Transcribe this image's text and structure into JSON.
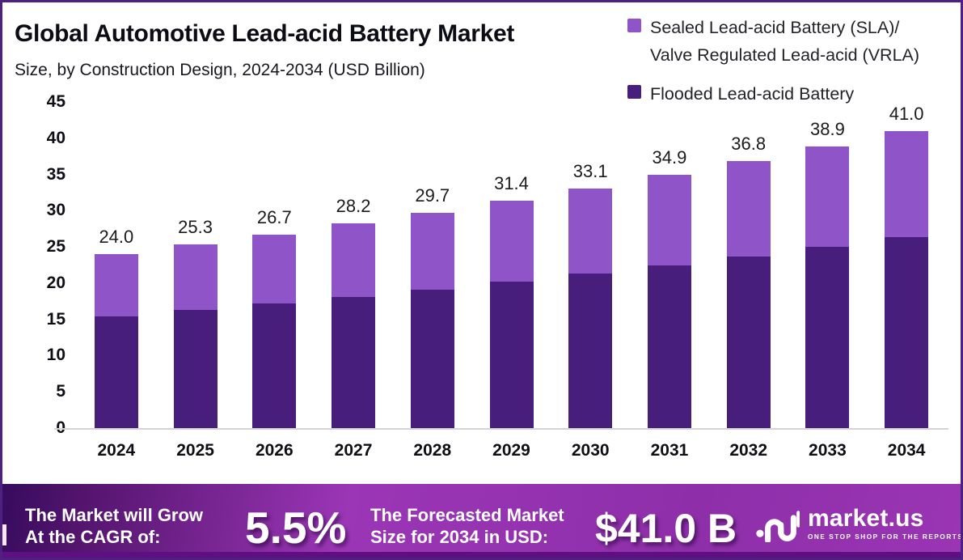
{
  "header": {
    "title": "Global Automotive Lead-acid Battery Market",
    "subtitle": "Size, by Construction Design, 2024-2034 (USD Billion)"
  },
  "legend": {
    "items": [
      {
        "lines": [
          "Sealed Lead-acid Battery (SLA)/",
          "Valve Regulated Lead-acid (VRLA)"
        ],
        "color": "#8f55c8"
      },
      {
        "lines": [
          "Flooded Lead-acid Battery",
          ""
        ],
        "color": "#471e7b"
      }
    ]
  },
  "chart_data": {
    "type": "bar",
    "stacked": true,
    "title": "Global Automotive Lead-acid Battery Market Size, by Construction Design, 2024-2034 (USD Billion)",
    "categories": [
      "2024",
      "2025",
      "2026",
      "2027",
      "2028",
      "2029",
      "2030",
      "2031",
      "2032",
      "2033",
      "2034"
    ],
    "series": [
      {
        "name": "Flooded Lead-acid Battery",
        "color": "#471e7b",
        "values": [
          15.4,
          16.3,
          17.2,
          18.1,
          19.1,
          20.2,
          21.3,
          22.4,
          23.7,
          25.0,
          26.4
        ]
      },
      {
        "name": "Sealed Lead-acid Battery (SLA)/Valve Regulated Lead-acid (VRLA)",
        "color": "#8f55c8",
        "values": [
          8.6,
          9.0,
          9.5,
          10.1,
          10.6,
          11.2,
          11.8,
          12.5,
          13.1,
          13.9,
          14.6
        ]
      }
    ],
    "totals": [
      24.0,
      25.3,
      26.7,
      28.2,
      29.7,
      31.4,
      33.1,
      34.9,
      36.8,
      38.9,
      41.0
    ],
    "total_labels": [
      "24.0",
      "25.3",
      "26.7",
      "28.2",
      "29.7",
      "31.4",
      "33.1",
      "34.9",
      "36.8",
      "38.9",
      "41.0"
    ],
    "xlabel": "",
    "ylabel": "",
    "ylim": [
      0,
      45
    ],
    "yticks": [
      0,
      5,
      10,
      15,
      20,
      25,
      30,
      35,
      40,
      45
    ],
    "grid": false,
    "legend_position": "top-right"
  },
  "banner": {
    "cagr_label_lines": [
      "The Market will Grow",
      "At the CAGR of:"
    ],
    "cagr_value": "5.5%",
    "forecast_label_lines": [
      "The Forecasted Market",
      "Size for 2034 in USD:"
    ],
    "forecast_value": "$41.0 B",
    "brand": {
      "name": "market.us",
      "tagline": "ONE STOP SHOP FOR THE REPORTS"
    }
  },
  "colors": {
    "flooded_bar": "#471e7b",
    "sla_bar": "#8f55c8",
    "banner_gradient_left": "#360b5e",
    "banner_gradient_right": "#9a35b3",
    "page_border": "#4d2182",
    "axis_line": "#d4d4d4",
    "text_dark": "#0c0c14",
    "banner_text": "#ffffff"
  }
}
